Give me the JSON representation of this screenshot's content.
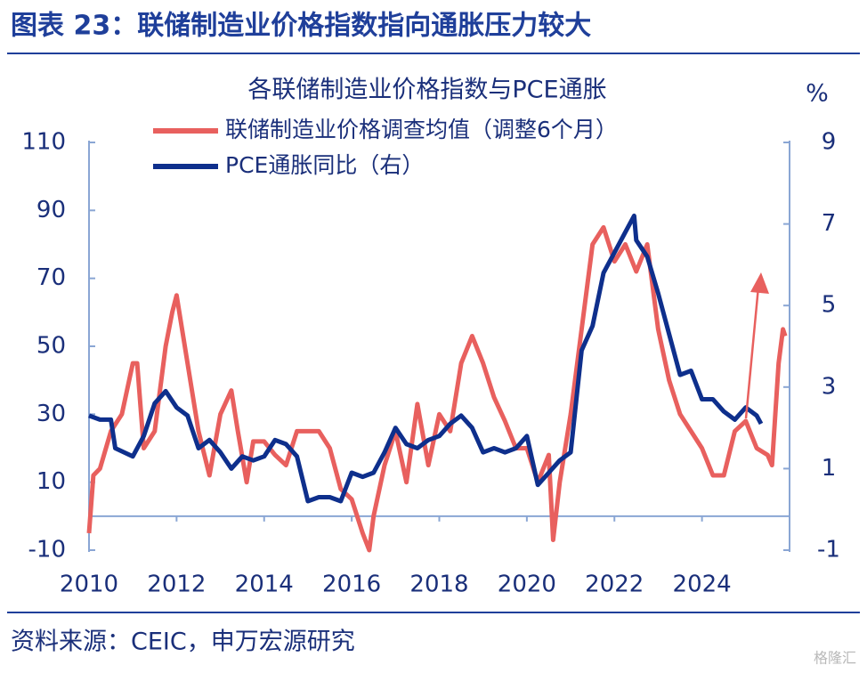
{
  "header": {
    "title": "图表 23：联储制造业价格指数指向通胀压力较大"
  },
  "chart_data": {
    "type": "line",
    "title": "各联储制造业价格指数与PCE通胀",
    "y2_unit": "%",
    "xlim": [
      2010,
      2026
    ],
    "xticks": [
      2010,
      2012,
      2014,
      2016,
      2018,
      2020,
      2022,
      2024
    ],
    "ylim": [
      -10,
      110
    ],
    "yticks": [
      -10,
      10,
      30,
      50,
      70,
      90,
      110
    ],
    "y2lim": [
      -1,
      9
    ],
    "y2ticks": [
      -1,
      1,
      3,
      5,
      7,
      9
    ],
    "legend": "top-left",
    "series": [
      {
        "name": "联储制造业价格调查均值（调整6个月）",
        "color": "#e8605e",
        "axis": "y",
        "x": [
          2010,
          2010.1,
          2010.25,
          2010.5,
          2010.75,
          2011,
          2011.1,
          2011.25,
          2011.5,
          2011.75,
          2011.9,
          2012,
          2012.25,
          2012.5,
          2012.75,
          2013,
          2013.25,
          2013.4,
          2013.6,
          2013.75,
          2014,
          2014.25,
          2014.5,
          2014.75,
          2015,
          2015.25,
          2015.5,
          2015.75,
          2016,
          2016.25,
          2016.4,
          2016.5,
          2016.75,
          2017,
          2017.25,
          2017.5,
          2017.75,
          2018,
          2018.25,
          2018.5,
          2018.75,
          2019,
          2019.25,
          2019.5,
          2019.75,
          2020,
          2020.25,
          2020.5,
          2020.6,
          2020.75,
          2021,
          2021.25,
          2021.5,
          2021.75,
          2022,
          2022.25,
          2022.5,
          2022.75,
          2023,
          2023.25,
          2023.5,
          2023.75,
          2024,
          2024.25,
          2024.5,
          2024.75,
          2025,
          2025.25,
          2025.5,
          2025.6,
          2025.75,
          2025.85,
          2025.9
        ],
        "values": [
          -5,
          12,
          14,
          25,
          30,
          45,
          45,
          20,
          25,
          50,
          60,
          65,
          45,
          25,
          12,
          30,
          37,
          25,
          10,
          22,
          22,
          18,
          15,
          25,
          25,
          25,
          20,
          8,
          5,
          -5,
          -10,
          0,
          15,
          25,
          10,
          33,
          15,
          30,
          25,
          45,
          53,
          45,
          35,
          28,
          20,
          20,
          10,
          18,
          -7,
          10,
          30,
          55,
          80,
          85,
          75,
          80,
          72,
          80,
          55,
          40,
          30,
          25,
          20,
          12,
          12,
          25,
          28,
          20,
          18,
          15,
          45,
          55,
          53
        ]
      },
      {
        "name": "PCE通胀同比（右）",
        "color": "#0e2f8c",
        "axis": "y2",
        "x": [
          2010,
          2010.25,
          2010.5,
          2010.6,
          2011,
          2011.25,
          2011.5,
          2011.75,
          2012,
          2012.25,
          2012.5,
          2012.75,
          2013,
          2013.25,
          2013.5,
          2013.75,
          2014,
          2014.25,
          2014.5,
          2014.75,
          2015,
          2015.25,
          2015.5,
          2015.75,
          2016,
          2016.25,
          2016.5,
          2016.75,
          2017,
          2017.25,
          2017.5,
          2017.75,
          2018,
          2018.25,
          2018.5,
          2018.75,
          2019,
          2019.25,
          2019.5,
          2019.75,
          2020,
          2020.25,
          2020.5,
          2020.75,
          2021,
          2021.25,
          2021.5,
          2021.75,
          2022,
          2022.25,
          2022.45,
          2022.5,
          2022.75,
          2023,
          2023.25,
          2023.5,
          2023.75,
          2024,
          2024.25,
          2024.5,
          2024.75,
          2025,
          2025.25,
          2025.35
        ],
        "values": [
          2.3,
          2.2,
          2.2,
          1.5,
          1.3,
          1.8,
          2.6,
          2.9,
          2.5,
          2.3,
          1.5,
          1.7,
          1.4,
          1.0,
          1.3,
          1.2,
          1.3,
          1.7,
          1.6,
          1.3,
          0.2,
          0.3,
          0.3,
          0.2,
          0.9,
          0.8,
          0.9,
          1.4,
          2.0,
          1.6,
          1.5,
          1.7,
          1.8,
          2.1,
          2.3,
          2.0,
          1.4,
          1.5,
          1.4,
          1.5,
          1.8,
          0.6,
          0.9,
          1.2,
          1.4,
          3.9,
          4.5,
          5.8,
          6.3,
          6.8,
          7.2,
          6.6,
          6.2,
          5.3,
          4.3,
          3.3,
          3.4,
          2.7,
          2.7,
          2.4,
          2.2,
          2.5,
          2.3,
          2.1
        ]
      }
    ]
  },
  "footer": {
    "source": "资料来源：CEIC，申万宏源研究",
    "watermark": "格隆汇"
  }
}
